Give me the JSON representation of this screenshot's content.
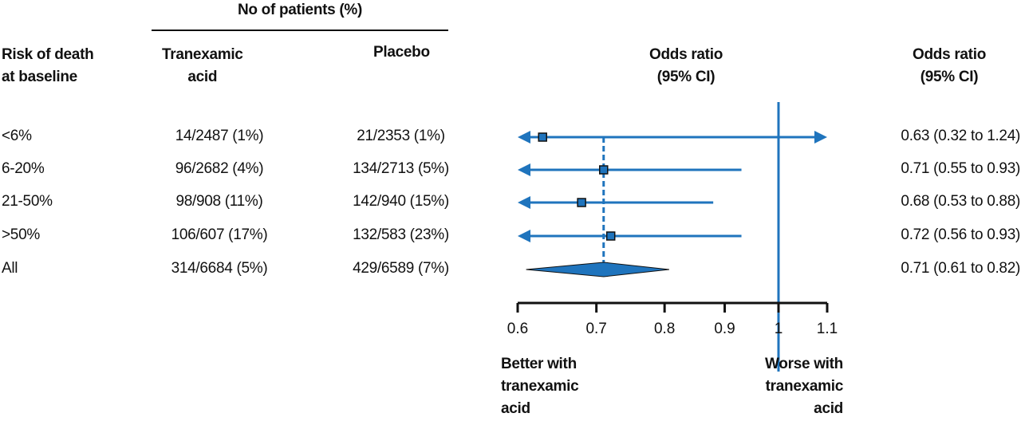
{
  "chart_data": {
    "type": "forest",
    "group_header": "No of patients (%)",
    "columns": {
      "risk": "Risk of death\nat baseline",
      "treatment": "Tranexamic\nacid",
      "placebo": "Placebo",
      "plot": "Odds ratio\n(95% CI)",
      "or": "Odds ratio\n(95% CI)"
    },
    "rows": [
      {
        "risk": "<6%",
        "treatment": "14/2487 (1%)",
        "placebo": "21/2353 (1%)",
        "or": 0.63,
        "lo": 0.32,
        "hi": 1.24,
        "or_text": "0.63 (0.32 to 1.24)"
      },
      {
        "risk": "6-20%",
        "treatment": "96/2682 (4%)",
        "placebo": "134/2713 (5%)",
        "or": 0.71,
        "lo": 0.55,
        "hi": 0.93,
        "or_text": "0.71 (0.55 to 0.93)"
      },
      {
        "risk": "21-50%",
        "treatment": "98/908 (11%)",
        "placebo": "142/940 (15%)",
        "or": 0.68,
        "lo": 0.53,
        "hi": 0.88,
        "or_text": "0.68 (0.53 to 0.88)"
      },
      {
        "risk": ">50%",
        "treatment": "106/607 (17%)",
        "placebo": "132/583 (23%)",
        "or": 0.72,
        "lo": 0.56,
        "hi": 0.93,
        "or_text": "0.72 (0.56 to 0.93)"
      }
    ],
    "overall": {
      "risk": "All",
      "treatment": "314/6684 (5%)",
      "placebo": "429/6589 (7%)",
      "or": 0.71,
      "lo": 0.61,
      "hi": 0.82,
      "or_text": "0.71 (0.61 to 0.82)"
    },
    "x_scale": "log",
    "xlim": [
      0.6,
      1.1
    ],
    "x_ticks": [
      "0.6",
      "0.7",
      "0.8",
      "0.9",
      "1",
      "1.1"
    ],
    "reference_line": 1,
    "left_label": "Better with\ntranexamic\nacid",
    "right_label": "Worse with\ntranexamic\nacid",
    "color": "#1f74bd"
  }
}
